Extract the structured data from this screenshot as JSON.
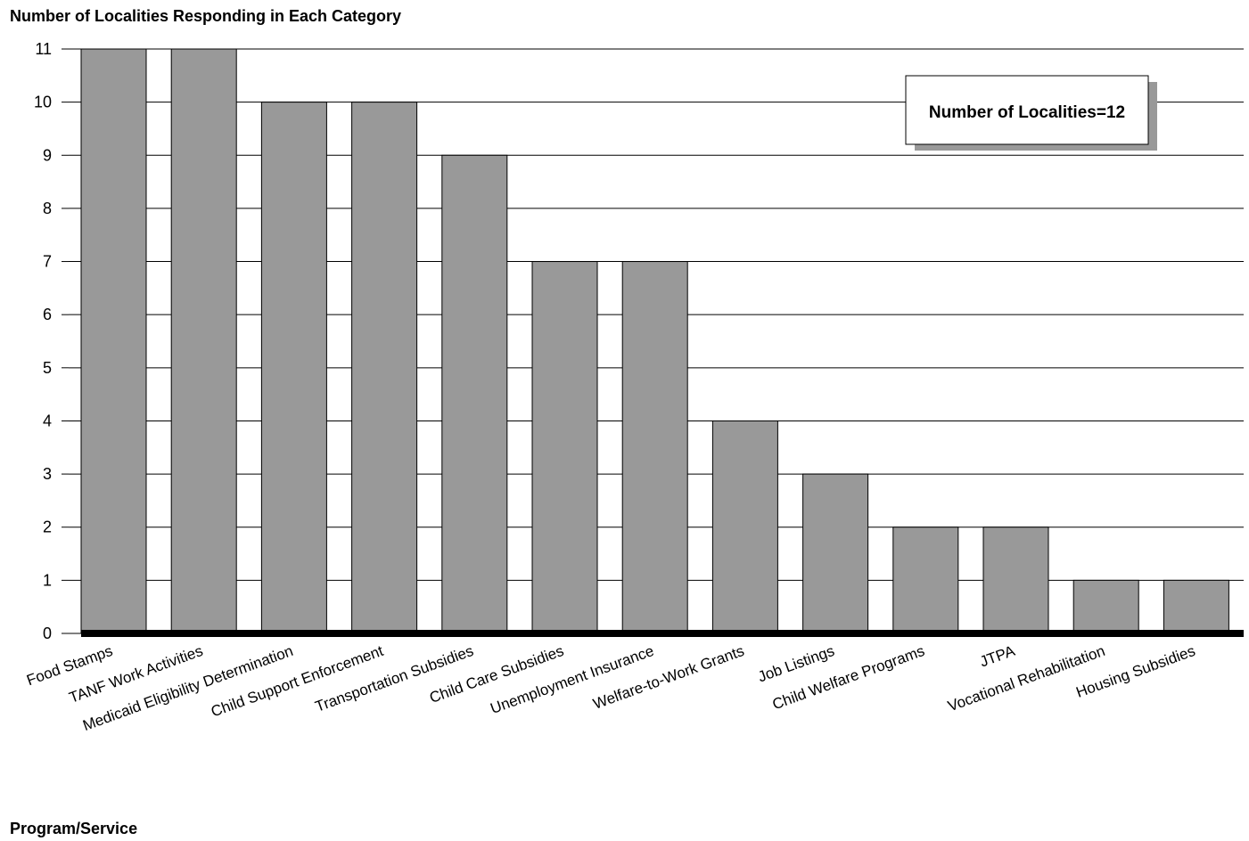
{
  "chart_data": {
    "type": "bar",
    "ylabel": "Number of Localities Responding in Each Category",
    "xlabel": "Program/Service",
    "annotation": "Number of Localities=12",
    "categories": [
      "Food Stamps",
      "TANF Work Activities",
      "Medicaid Eligibility Determination",
      "Child Support Enforcement",
      "Transportation Subsidies",
      "Child Care Subsidies",
      "Unemployment Insurance",
      "Welfare-to-Work Grants",
      "Job Listings",
      "Child Welfare Programs",
      "JTPA",
      "Vocational Rehabilitation",
      "Housing Subsidies"
    ],
    "values": [
      11,
      11,
      10,
      10,
      9,
      7,
      7,
      4,
      3,
      2,
      2,
      1,
      1
    ],
    "ylim": [
      0,
      11
    ],
    "yticks": [
      0,
      1,
      2,
      3,
      4,
      5,
      6,
      7,
      8,
      9,
      10,
      11
    ],
    "grid": true,
    "colors": {
      "bar": "#999999",
      "bar_edge": "#000000",
      "grid": "#000000",
      "shadow": "#999999"
    }
  }
}
